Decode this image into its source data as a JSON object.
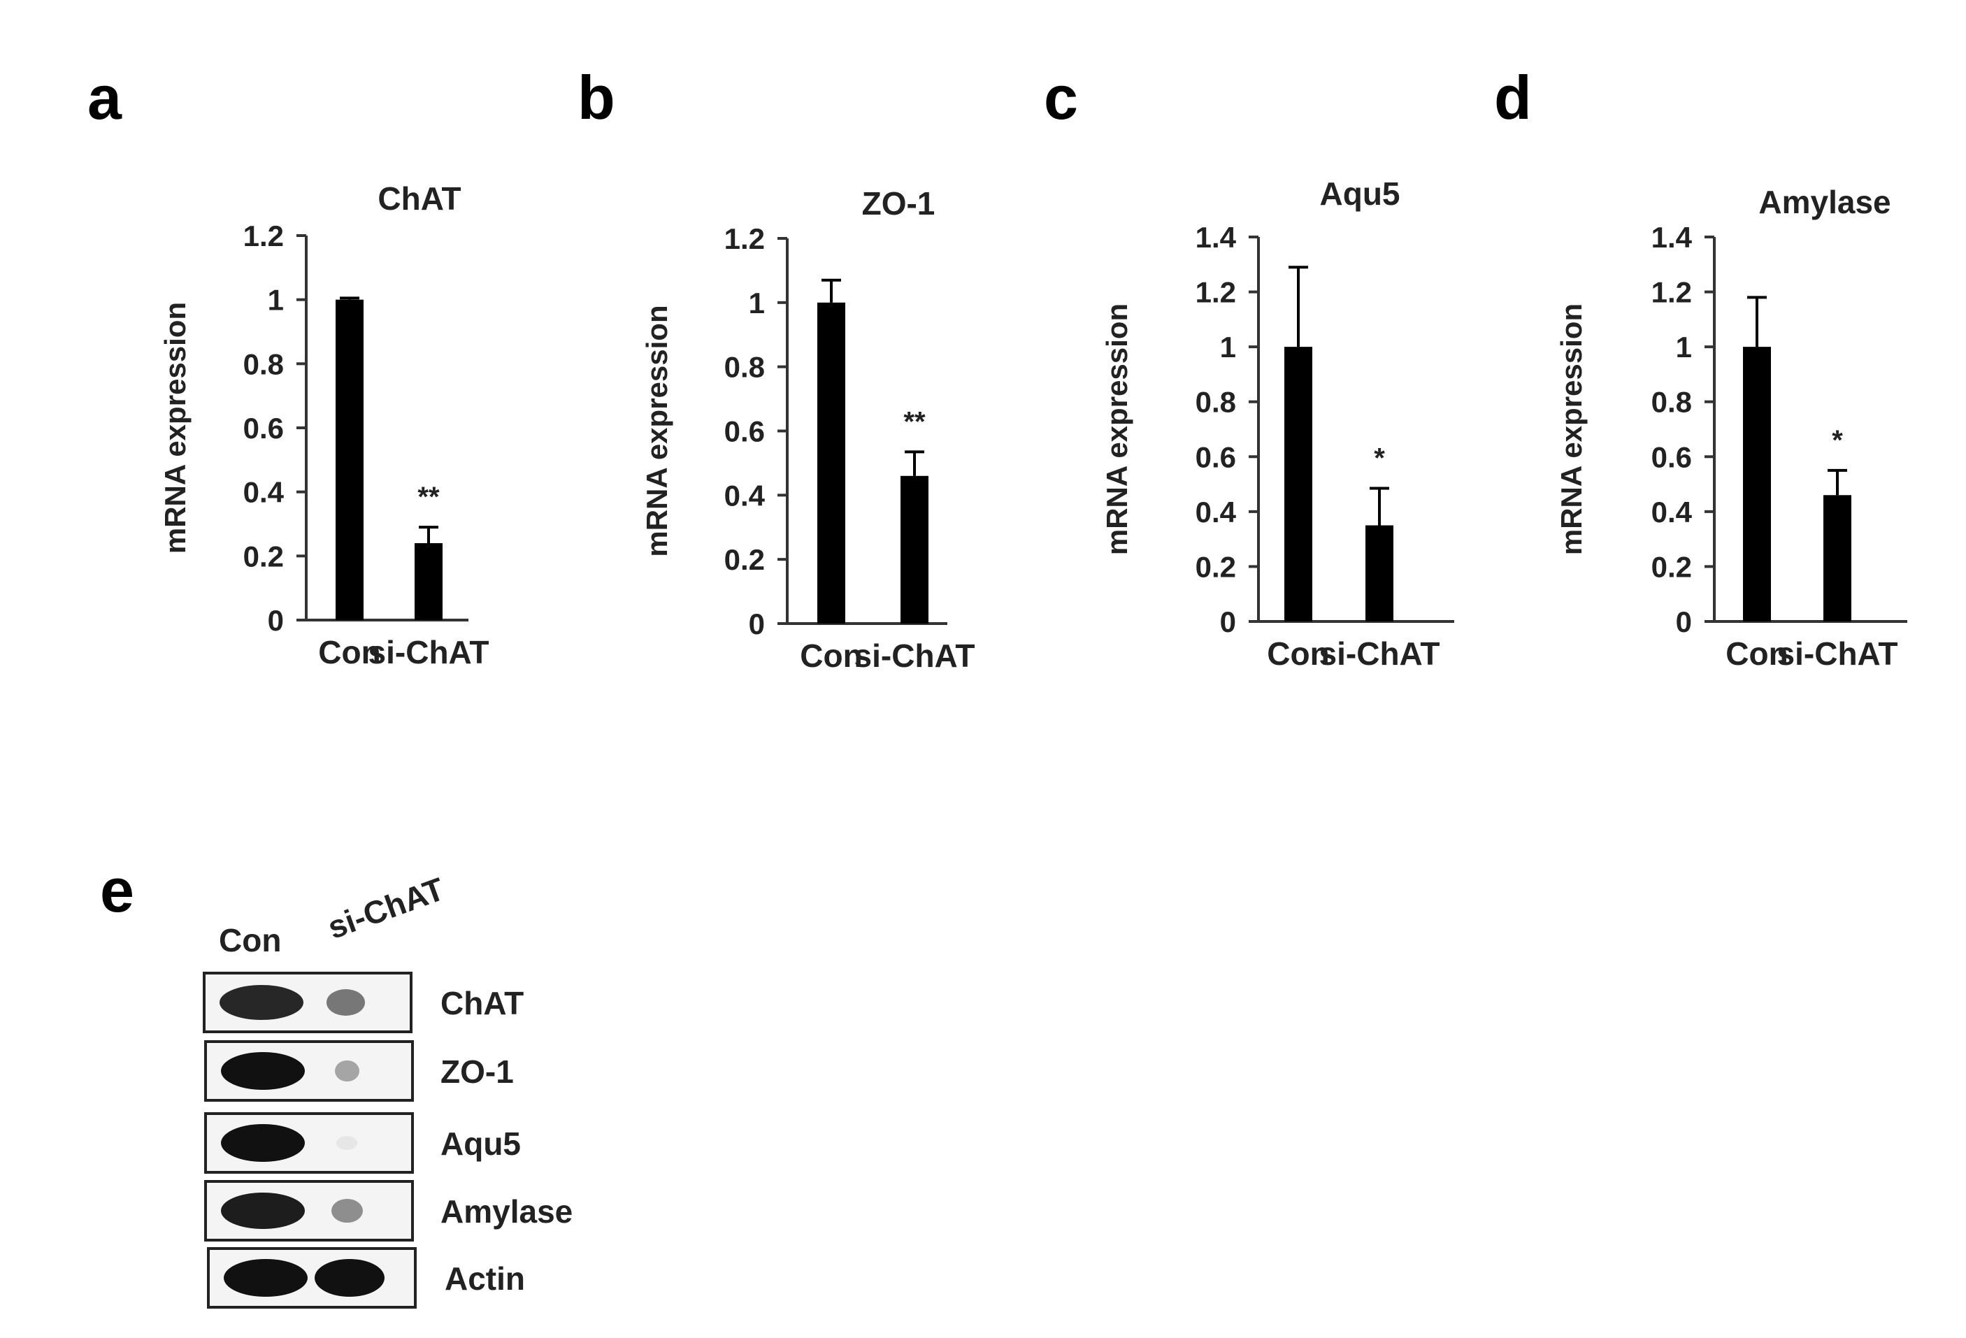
{
  "panel_letters": [
    "a",
    "b",
    "c",
    "d",
    "e"
  ],
  "chart_data": [
    {
      "type": "bar",
      "title": "ChAT",
      "ylabel": "mRNA expression",
      "categories": [
        "Con",
        "si-ChAT"
      ],
      "values": [
        1.0,
        0.24
      ],
      "errors": [
        0.005,
        0.05
      ],
      "significance": [
        "",
        "**"
      ],
      "ylim": [
        0,
        1.2
      ],
      "yticks": [
        "0",
        "0.2",
        "0.4",
        "0.6",
        "0.8",
        "1",
        "1.2"
      ],
      "grid": false
    },
    {
      "type": "bar",
      "title": "ZO-1",
      "ylabel": "mRNA expression",
      "categories": [
        "Con",
        "si-ChAT"
      ],
      "values": [
        1.0,
        0.46
      ],
      "errors": [
        0.07,
        0.075
      ],
      "significance": [
        "",
        "**"
      ],
      "ylim": [
        0,
        1.2
      ],
      "yticks": [
        "0",
        "0.2",
        "0.4",
        "0.6",
        "0.8",
        "1",
        "1.2"
      ],
      "grid": false
    },
    {
      "type": "bar",
      "title": "Aqu5",
      "ylabel": "mRNA expression",
      "categories": [
        "Con",
        "si-ChAT"
      ],
      "values": [
        1.0,
        0.35
      ],
      "errors": [
        0.29,
        0.135
      ],
      "significance": [
        "",
        "*"
      ],
      "ylim": [
        0,
        1.4
      ],
      "yticks": [
        "0",
        "0.2",
        "0.4",
        "0.6",
        "0.8",
        "1",
        "1.2",
        "1.4"
      ],
      "grid": false
    },
    {
      "type": "bar",
      "title": "Amylase",
      "ylabel": "mRNA expression",
      "categories": [
        "Con",
        "si-ChAT"
      ],
      "values": [
        1.0,
        0.46
      ],
      "errors": [
        0.18,
        0.09
      ],
      "significance": [
        "",
        "*"
      ],
      "ylim": [
        0,
        1.4
      ],
      "yticks": [
        "0",
        "0.2",
        "0.4",
        "0.6",
        "0.8",
        "1",
        "1.2",
        "1.4"
      ],
      "grid": false
    }
  ],
  "western_blot": {
    "lanes": [
      "Con",
      "si-ChAT"
    ],
    "rows": [
      {
        "label": "ChAT",
        "intensity": [
          0.9,
          0.55
        ]
      },
      {
        "label": "ZO-1",
        "intensity": [
          1.0,
          0.35
        ]
      },
      {
        "label": "Aqu5",
        "intensity": [
          1.0,
          0.05
        ]
      },
      {
        "label": "Amylase",
        "intensity": [
          0.95,
          0.45
        ]
      },
      {
        "label": "Actin",
        "intensity": [
          1.0,
          1.0
        ]
      }
    ]
  },
  "colors": {
    "bar": "#000000",
    "axis": "#333333",
    "text": "#222222"
  }
}
